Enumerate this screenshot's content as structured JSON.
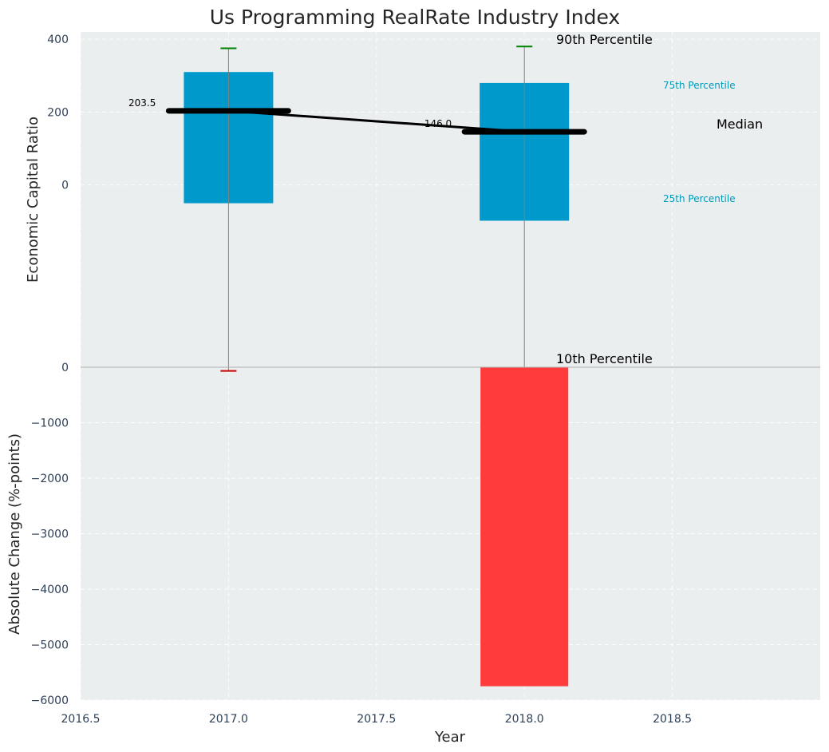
{
  "chart_data": [
    {
      "type": "box",
      "title": "Us Programming RealRate Industry Index",
      "ylabel": "Economic Capital Ratio",
      "ylim": [
        -500,
        420
      ],
      "yticks": [
        "400",
        "200",
        "0"
      ],
      "ytick_values": [
        400,
        200,
        0
      ],
      "x": [
        2017.0,
        2018.0
      ],
      "p90": [
        375,
        380
      ],
      "p75": [
        310,
        280
      ],
      "median": [
        203.5,
        146.0
      ],
      "median_labels": [
        "203.5",
        "146.0"
      ],
      "p25": [
        -50,
        -98
      ],
      "p10": [
        -510,
        -548
      ],
      "annotations": {
        "p90": "90th Percentile",
        "p75": "75th Percentile",
        "median": "Median",
        "p25": "25th Percentile",
        "p10": "10th Percentile"
      },
      "colors": {
        "box": "#0099cc",
        "median": "#000000",
        "p90_cap": "#008000",
        "p10_cap": "#cc0000",
        "whisker": "#808080",
        "background": "#eaeeee"
      }
    },
    {
      "type": "bar",
      "ylabel": "Absolute Change (%-points)",
      "xlabel": "Year",
      "xlim": [
        2016.5,
        2019.0
      ],
      "ylim": [
        -6000,
        0
      ],
      "xticks": [
        "2016.5",
        "2017.0",
        "2017.5",
        "2018.0",
        "2018.5"
      ],
      "xtick_values": [
        2016.5,
        2017.0,
        2017.5,
        2018.0,
        2018.5
      ],
      "yticks": [
        "0",
        "−1000",
        "−2000",
        "−3000",
        "−4000",
        "−5000",
        "−6000"
      ],
      "ytick_values": [
        0,
        -1000,
        -2000,
        -3000,
        -4000,
        -5000,
        -6000
      ],
      "x": [
        2018.0
      ],
      "values": [
        -5750
      ],
      "colors": {
        "bar": "#ff3b3b"
      }
    }
  ]
}
